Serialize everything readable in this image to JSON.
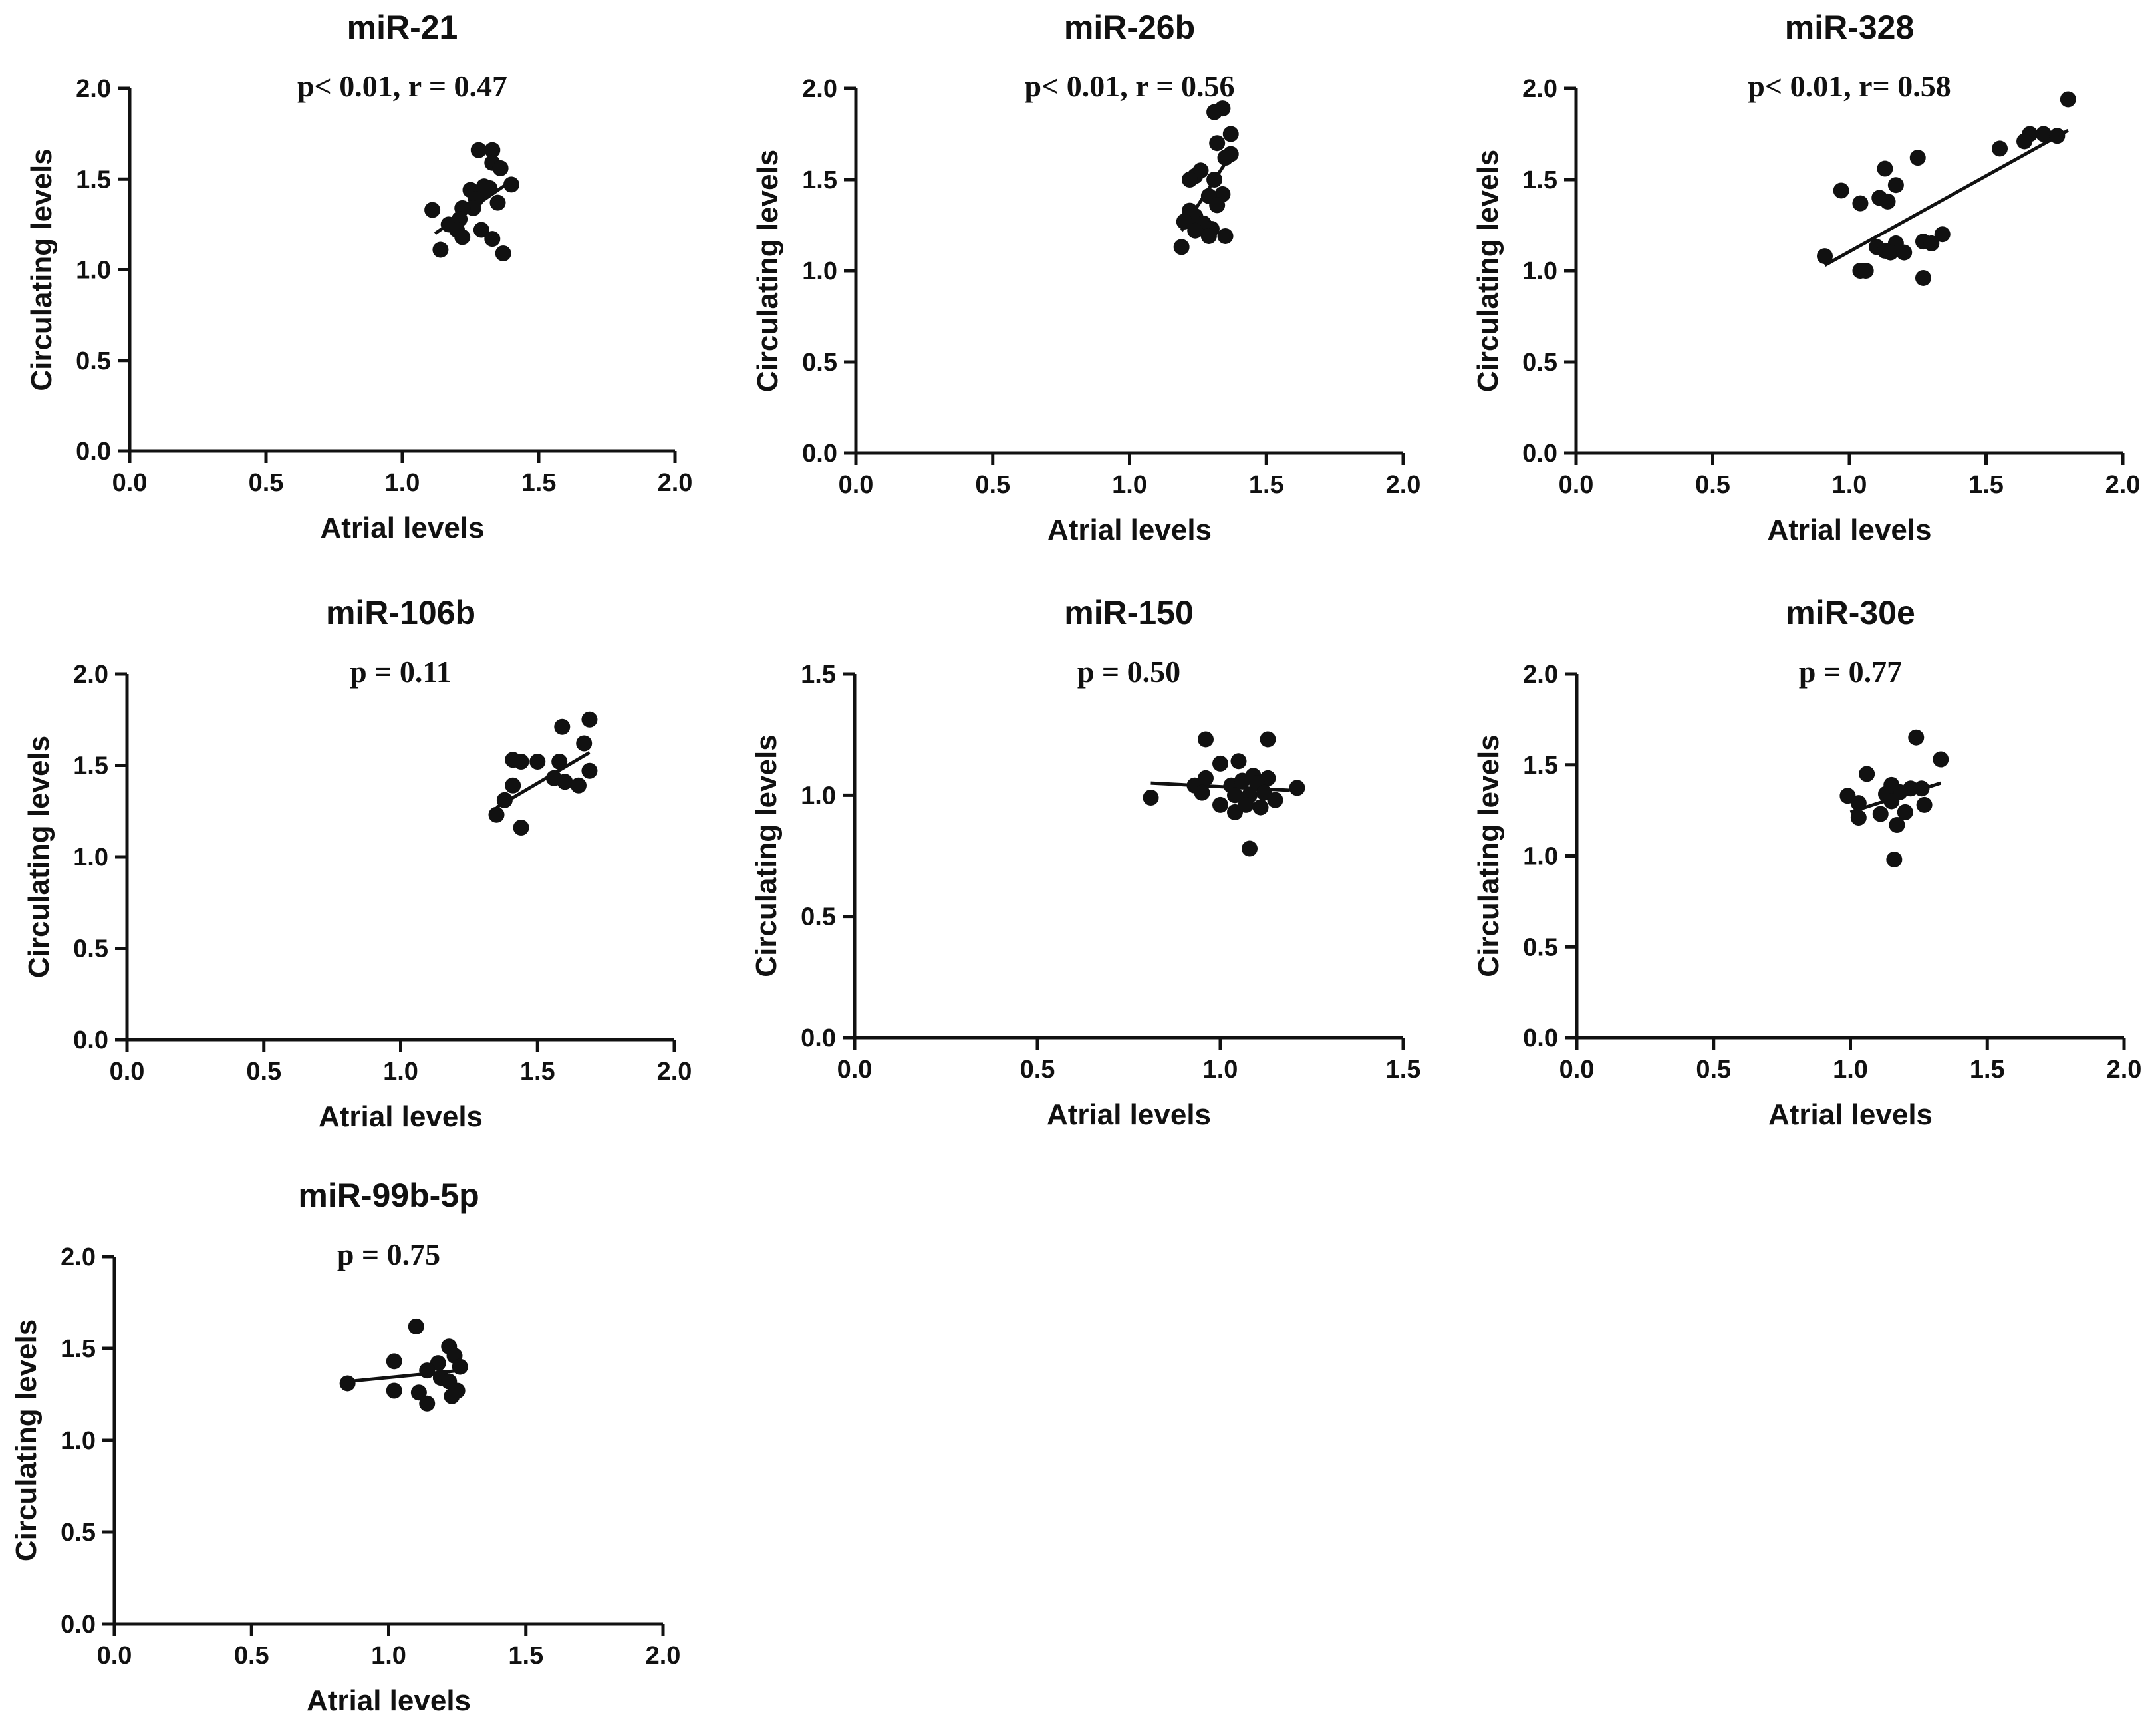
{
  "chart_data": [
    {
      "type": "scatter",
      "title": "miR-21",
      "annotation": "p< 0.01, r = 0.47",
      "xlabel": "Atrial levels",
      "ylabel": "Circulating levels",
      "xlim": [
        0,
        2.0
      ],
      "ylim": [
        0,
        2.0
      ],
      "xticks": [
        "0.0",
        "0.5",
        "1.0",
        "1.5",
        "2.0"
      ],
      "yticks": [
        "0.0",
        "0.5",
        "1.0",
        "1.5",
        "2.0"
      ],
      "fit": {
        "x": [
          1.12,
          1.39
        ],
        "y": [
          1.2,
          1.48
        ]
      },
      "points": [
        {
          "x": 1.28,
          "y": 1.66
        },
        {
          "x": 1.33,
          "y": 1.66
        },
        {
          "x": 1.33,
          "y": 1.59
        },
        {
          "x": 1.36,
          "y": 1.56
        },
        {
          "x": 1.4,
          "y": 1.47
        },
        {
          "x": 1.3,
          "y": 1.46
        },
        {
          "x": 1.32,
          "y": 1.45
        },
        {
          "x": 1.25,
          "y": 1.44
        },
        {
          "x": 1.29,
          "y": 1.42
        },
        {
          "x": 1.27,
          "y": 1.39
        },
        {
          "x": 1.35,
          "y": 1.37
        },
        {
          "x": 1.26,
          "y": 1.34
        },
        {
          "x": 1.22,
          "y": 1.34
        },
        {
          "x": 1.11,
          "y": 1.33
        },
        {
          "x": 1.21,
          "y": 1.28
        },
        {
          "x": 1.17,
          "y": 1.25
        },
        {
          "x": 1.2,
          "y": 1.22
        },
        {
          "x": 1.29,
          "y": 1.22
        },
        {
          "x": 1.22,
          "y": 1.18
        },
        {
          "x": 1.33,
          "y": 1.17
        },
        {
          "x": 1.14,
          "y": 1.11
        },
        {
          "x": 1.37,
          "y": 1.09
        }
      ]
    },
    {
      "type": "scatter",
      "title": "miR-26b",
      "annotation": "p< 0.01, r = 0.56",
      "xlabel": "Atrial levels",
      "ylabel": "Circulating levels",
      "xlim": [
        0,
        2.0
      ],
      "ylim": [
        0,
        2.0
      ],
      "xticks": [
        "0.0",
        "0.5",
        "1.0",
        "1.5",
        "2.0"
      ],
      "yticks": [
        "0.0",
        "0.5",
        "1.0",
        "1.5",
        "2.0"
      ],
      "fit": {
        "x": [
          1.19,
          1.38
        ],
        "y": [
          1.22,
          1.66
        ]
      },
      "points": [
        {
          "x": 1.34,
          "y": 1.89
        },
        {
          "x": 1.31,
          "y": 1.87
        },
        {
          "x": 1.37,
          "y": 1.75
        },
        {
          "x": 1.32,
          "y": 1.7
        },
        {
          "x": 1.37,
          "y": 1.64
        },
        {
          "x": 1.35,
          "y": 1.62
        },
        {
          "x": 1.26,
          "y": 1.55
        },
        {
          "x": 1.24,
          "y": 1.52
        },
        {
          "x": 1.22,
          "y": 1.5
        },
        {
          "x": 1.31,
          "y": 1.5
        },
        {
          "x": 1.34,
          "y": 1.42
        },
        {
          "x": 1.29,
          "y": 1.41
        },
        {
          "x": 1.32,
          "y": 1.36
        },
        {
          "x": 1.22,
          "y": 1.33
        },
        {
          "x": 1.24,
          "y": 1.3
        },
        {
          "x": 1.2,
          "y": 1.27
        },
        {
          "x": 1.27,
          "y": 1.26
        },
        {
          "x": 1.3,
          "y": 1.23
        },
        {
          "x": 1.24,
          "y": 1.22
        },
        {
          "x": 1.29,
          "y": 1.19
        },
        {
          "x": 1.35,
          "y": 1.19
        },
        {
          "x": 1.19,
          "y": 1.13
        }
      ]
    },
    {
      "type": "scatter",
      "title": "miR-328",
      "annotation": "p< 0.01, r= 0.58",
      "xlabel": "Atrial levels",
      "ylabel": "Circulating levels",
      "xlim": [
        0,
        2.0
      ],
      "ylim": [
        0,
        2.0
      ],
      "xticks": [
        "0.0",
        "0.5",
        "1.0",
        "1.5",
        "2.0"
      ],
      "yticks": [
        "0.0",
        "0.5",
        "1.0",
        "1.5",
        "2.0"
      ],
      "fit": {
        "x": [
          0.91,
          1.8
        ],
        "y": [
          1.03,
          1.77
        ]
      },
      "points": [
        {
          "x": 1.8,
          "y": 1.94
        },
        {
          "x": 1.66,
          "y": 1.75
        },
        {
          "x": 1.71,
          "y": 1.75
        },
        {
          "x": 1.76,
          "y": 1.74
        },
        {
          "x": 1.64,
          "y": 1.71
        },
        {
          "x": 1.55,
          "y": 1.67
        },
        {
          "x": 1.25,
          "y": 1.62
        },
        {
          "x": 1.13,
          "y": 1.56
        },
        {
          "x": 1.17,
          "y": 1.47
        },
        {
          "x": 0.97,
          "y": 1.44
        },
        {
          "x": 1.11,
          "y": 1.4
        },
        {
          "x": 1.14,
          "y": 1.38
        },
        {
          "x": 1.04,
          "y": 1.37
        },
        {
          "x": 1.34,
          "y": 1.2
        },
        {
          "x": 1.27,
          "y": 1.16
        },
        {
          "x": 1.3,
          "y": 1.15
        },
        {
          "x": 1.17,
          "y": 1.15
        },
        {
          "x": 1.1,
          "y": 1.13
        },
        {
          "x": 1.13,
          "y": 1.11
        },
        {
          "x": 1.15,
          "y": 1.1
        },
        {
          "x": 1.2,
          "y": 1.1
        },
        {
          "x": 0.91,
          "y": 1.08
        },
        {
          "x": 1.04,
          "y": 1.0
        },
        {
          "x": 1.06,
          "y": 1.0
        },
        {
          "x": 1.27,
          "y": 0.96
        }
      ]
    },
    {
      "type": "scatter",
      "title": "miR-106b",
      "annotation": "p = 0.11",
      "xlabel": "Atrial levels",
      "ylabel": "Circulating levels",
      "xlim": [
        0,
        2.0
      ],
      "ylim": [
        0,
        2.0
      ],
      "xticks": [
        "0.0",
        "0.5",
        "1.0",
        "1.5",
        "2.0"
      ],
      "yticks": [
        "0.0",
        "0.5",
        "1.0",
        "1.5",
        "2.0"
      ],
      "fit": {
        "x": [
          1.35,
          1.69
        ],
        "y": [
          1.27,
          1.57
        ]
      },
      "points": [
        {
          "x": 1.69,
          "y": 1.75
        },
        {
          "x": 1.59,
          "y": 1.71
        },
        {
          "x": 1.67,
          "y": 1.62
        },
        {
          "x": 1.41,
          "y": 1.53
        },
        {
          "x": 1.44,
          "y": 1.52
        },
        {
          "x": 1.5,
          "y": 1.52
        },
        {
          "x": 1.58,
          "y": 1.52
        },
        {
          "x": 1.69,
          "y": 1.47
        },
        {
          "x": 1.56,
          "y": 1.43
        },
        {
          "x": 1.6,
          "y": 1.41
        },
        {
          "x": 1.65,
          "y": 1.39
        },
        {
          "x": 1.41,
          "y": 1.39
        },
        {
          "x": 1.38,
          "y": 1.31
        },
        {
          "x": 1.35,
          "y": 1.23
        },
        {
          "x": 1.44,
          "y": 1.16
        }
      ]
    },
    {
      "type": "scatter",
      "title": "miR-150",
      "annotation": "p = 0.50",
      "xlabel": "Atrial levels",
      "ylabel": "Circulating levels",
      "xlim": [
        0,
        1.5
      ],
      "ylim": [
        0,
        1.5
      ],
      "xticks": [
        "0.0",
        "0.5",
        "1.0",
        "1.5"
      ],
      "yticks": [
        "0.0",
        "0.5",
        "1.0",
        "1.5"
      ],
      "fit": {
        "x": [
          0.81,
          1.19
        ],
        "y": [
          1.05,
          1.02
        ]
      },
      "points": [
        {
          "x": 0.96,
          "y": 1.23
        },
        {
          "x": 1.13,
          "y": 1.23
        },
        {
          "x": 1.0,
          "y": 1.13
        },
        {
          "x": 1.05,
          "y": 1.14
        },
        {
          "x": 1.09,
          "y": 1.08
        },
        {
          "x": 1.13,
          "y": 1.07
        },
        {
          "x": 0.96,
          "y": 1.07
        },
        {
          "x": 0.93,
          "y": 1.04
        },
        {
          "x": 1.03,
          "y": 1.04
        },
        {
          "x": 1.06,
          "y": 1.06
        },
        {
          "x": 1.1,
          "y": 1.05
        },
        {
          "x": 1.21,
          "y": 1.03
        },
        {
          "x": 0.95,
          "y": 1.01
        },
        {
          "x": 1.04,
          "y": 1.0
        },
        {
          "x": 1.08,
          "y": 1.0
        },
        {
          "x": 1.12,
          "y": 1.01
        },
        {
          "x": 1.15,
          "y": 0.98
        },
        {
          "x": 0.81,
          "y": 0.99
        },
        {
          "x": 1.0,
          "y": 0.96
        },
        {
          "x": 1.07,
          "y": 0.96
        },
        {
          "x": 1.11,
          "y": 0.95
        },
        {
          "x": 1.04,
          "y": 0.93
        },
        {
          "x": 1.08,
          "y": 0.78
        }
      ]
    },
    {
      "type": "scatter",
      "title": "miR-30e",
      "annotation": "p = 0.77",
      "xlabel": "Atrial levels",
      "ylabel": "Circulating levels",
      "xlim": [
        0,
        2.0
      ],
      "ylim": [
        0,
        2.0
      ],
      "xticks": [
        "0.0",
        "0.5",
        "1.0",
        "1.5",
        "2.0"
      ],
      "yticks": [
        "0.0",
        "0.5",
        "1.0",
        "1.5",
        "2.0"
      ],
      "fit": {
        "x": [
          1.0,
          1.33
        ],
        "y": [
          1.24,
          1.4
        ]
      },
      "points": [
        {
          "x": 1.24,
          "y": 1.65
        },
        {
          "x": 1.33,
          "y": 1.53
        },
        {
          "x": 1.06,
          "y": 1.45
        },
        {
          "x": 1.15,
          "y": 1.39
        },
        {
          "x": 1.22,
          "y": 1.37
        },
        {
          "x": 1.26,
          "y": 1.37
        },
        {
          "x": 1.18,
          "y": 1.35
        },
        {
          "x": 1.13,
          "y": 1.34
        },
        {
          "x": 0.99,
          "y": 1.33
        },
        {
          "x": 1.03,
          "y": 1.29
        },
        {
          "x": 1.15,
          "y": 1.3
        },
        {
          "x": 1.27,
          "y": 1.28
        },
        {
          "x": 1.11,
          "y": 1.23
        },
        {
          "x": 1.2,
          "y": 1.24
        },
        {
          "x": 1.03,
          "y": 1.21
        },
        {
          "x": 1.17,
          "y": 1.17
        },
        {
          "x": 1.16,
          "y": 0.98
        }
      ]
    },
    {
      "type": "scatter",
      "title": "miR-99b-5p",
      "annotation": "p = 0.75",
      "xlabel": "Atrial levels",
      "ylabel": "Circulating levels",
      "xlim": [
        0,
        2.0
      ],
      "ylim": [
        0,
        2.0
      ],
      "xticks": [
        "0.0",
        "0.5",
        "1.0",
        "1.5",
        "2.0"
      ],
      "yticks": [
        "0.0",
        "0.5",
        "1.0",
        "1.5",
        "2.0"
      ],
      "fit": {
        "x": [
          0.85,
          1.26
        ],
        "y": [
          1.32,
          1.38
        ]
      },
      "points": [
        {
          "x": 1.1,
          "y": 1.62
        },
        {
          "x": 1.22,
          "y": 1.51
        },
        {
          "x": 1.24,
          "y": 1.46
        },
        {
          "x": 1.02,
          "y": 1.43
        },
        {
          "x": 1.18,
          "y": 1.42
        },
        {
          "x": 1.26,
          "y": 1.4
        },
        {
          "x": 1.14,
          "y": 1.38
        },
        {
          "x": 1.19,
          "y": 1.34
        },
        {
          "x": 1.22,
          "y": 1.32
        },
        {
          "x": 0.85,
          "y": 1.31
        },
        {
          "x": 1.02,
          "y": 1.27
        },
        {
          "x": 1.11,
          "y": 1.26
        },
        {
          "x": 1.25,
          "y": 1.27
        },
        {
          "x": 1.23,
          "y": 1.24
        },
        {
          "x": 1.14,
          "y": 1.2
        }
      ]
    }
  ]
}
